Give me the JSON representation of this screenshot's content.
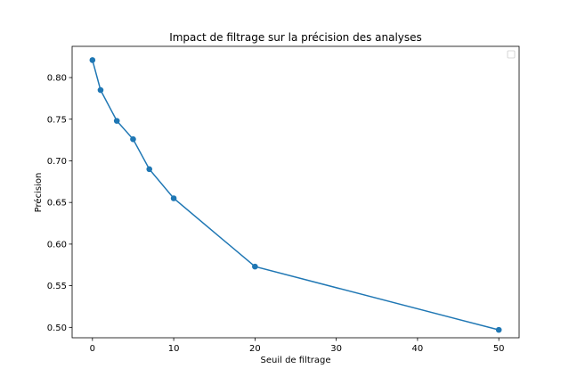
{
  "chart_data": {
    "type": "line",
    "title": "Impact de filtrage sur la précision des analyses",
    "xlabel": "Seuil de filtrage",
    "ylabel": "Précision",
    "xlim": [
      -2.5,
      52.5
    ],
    "ylim": [
      0.4875,
      0.8375
    ],
    "x_ticks": [
      "0",
      "10",
      "20",
      "30",
      "40",
      "50"
    ],
    "y_ticks": [
      "0.50",
      "0.55",
      "0.60",
      "0.65",
      "0.70",
      "0.75",
      "0.80"
    ],
    "grid": false,
    "legend": "top-right (empty)",
    "series": [
      {
        "color": "#1f77b4",
        "marker": "circle",
        "x": [
          0,
          1,
          3,
          5,
          7,
          10,
          20,
          50
        ],
        "y": [
          0.821,
          0.785,
          0.748,
          0.726,
          0.69,
          0.655,
          0.573,
          0.497
        ]
      }
    ]
  }
}
